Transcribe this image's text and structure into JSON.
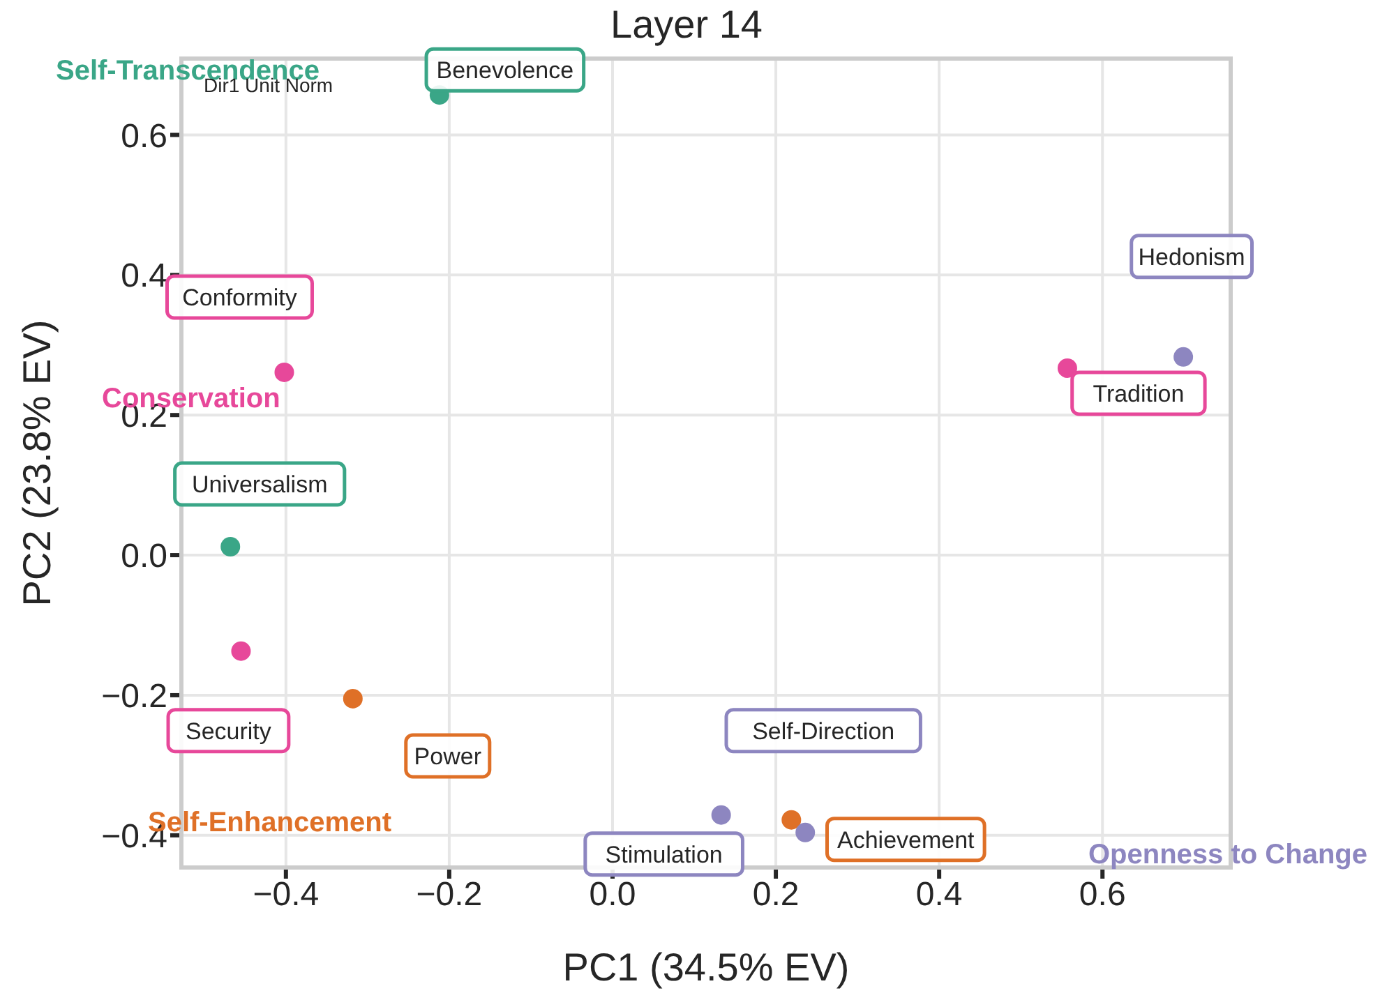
{
  "chart_data": {
    "type": "scatter",
    "title": "Layer 14",
    "xlabel": "PC1 (34.5% EV)",
    "ylabel": "PC2 (23.8% EV)",
    "xlim": [
      -0.528,
      0.757
    ],
    "ylim": [
      -0.446,
      0.709
    ],
    "xticks": [
      {
        "value": -0.4,
        "label": "−0.4"
      },
      {
        "value": -0.2,
        "label": "−0.2"
      },
      {
        "value": 0,
        "label": "0.0"
      },
      {
        "value": 0.2,
        "label": "0.2"
      },
      {
        "value": 0.4,
        "label": "0.4"
      },
      {
        "value": 0.6,
        "label": "0.6"
      }
    ],
    "yticks": [
      {
        "value": -0.4,
        "label": "−0.4"
      },
      {
        "value": -0.2,
        "label": "−0.2"
      },
      {
        "value": 0,
        "label": "0.0"
      },
      {
        "value": 0.2,
        "label": "0.2"
      },
      {
        "value": 0.4,
        "label": "0.4"
      },
      {
        "value": 0.6,
        "label": "0.6"
      }
    ],
    "grid": true,
    "marker": "circle",
    "legend": false,
    "series": [
      {
        "name": "Benevolence",
        "color": "#3aa687",
        "x": [
          -0.212
        ],
        "values": [
          0.657
        ]
      },
      {
        "name": "Conformity",
        "color": "#e7489a",
        "x": [
          -0.402
        ],
        "values": [
          0.261
        ]
      },
      {
        "name": "Universalism",
        "color": "#3aa687",
        "x": [
          -0.468
        ],
        "values": [
          0.012
        ]
      },
      {
        "name": "Security",
        "color": "#e7489a",
        "x": [
          -0.455
        ],
        "values": [
          -0.137
        ]
      },
      {
        "name": "Power",
        "color": "#df7027",
        "x": [
          -0.318
        ],
        "values": [
          -0.205
        ]
      },
      {
        "name": "Stimulation",
        "color": "#8d86c0",
        "x": [
          0.133
        ],
        "values": [
          -0.371
        ]
      },
      {
        "name": "Achievement",
        "color": "#df7027",
        "x": [
          0.219
        ],
        "values": [
          -0.378
        ]
      },
      {
        "name": "Self-Direction",
        "color": "#8d86c0",
        "x": [
          0.236
        ],
        "values": [
          -0.396
        ]
      },
      {
        "name": "Tradition",
        "color": "#e7489a",
        "x": [
          0.557
        ],
        "values": [
          0.267
        ]
      },
      {
        "name": "Hedonism",
        "color": "#8d86c0",
        "x": [
          0.699
        ],
        "values": [
          0.283
        ]
      }
    ],
    "annotations": [
      "Self-Transcendence",
      "Conservation",
      "Self-Enhancement",
      "Openness to Change",
      "Dir1 Unit Norm"
    ]
  }
}
